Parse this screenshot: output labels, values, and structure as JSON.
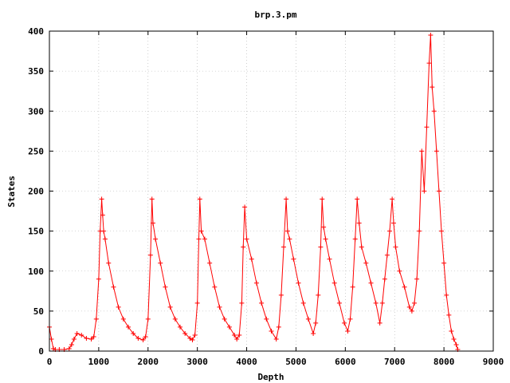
{
  "chart_data": {
    "type": "line",
    "title": "brp.3.pm",
    "xlabel": "Depth",
    "ylabel": "States",
    "xlim": [
      0,
      9000
    ],
    "ylim": [
      0,
      400
    ],
    "xticks": [
      0,
      1000,
      2000,
      3000,
      4000,
      5000,
      6000,
      7000,
      8000,
      9000
    ],
    "yticks": [
      0,
      50,
      100,
      150,
      200,
      250,
      300,
      350,
      400
    ],
    "grid": true,
    "legend": "none",
    "marker": "plus",
    "color": "#ff0000",
    "series": [
      {
        "x": [
          0,
          40,
          80,
          120,
          200,
          300,
          400,
          450,
          500,
          560,
          650,
          750,
          850,
          900,
          950,
          1000,
          1030,
          1060,
          1080,
          1100,
          1130,
          1200,
          1300,
          1400,
          1500,
          1600,
          1700,
          1800,
          1900,
          1950,
          2000,
          2050,
          2080,
          2100,
          2150,
          2250,
          2350,
          2450,
          2550,
          2650,
          2750,
          2850,
          2900,
          2950,
          3000,
          3030,
          3050,
          3080,
          3150,
          3250,
          3350,
          3450,
          3550,
          3650,
          3750,
          3800,
          3850,
          3900,
          3930,
          3960,
          4000,
          4100,
          4200,
          4300,
          4400,
          4500,
          4600,
          4650,
          4700,
          4750,
          4800,
          4830,
          4870,
          4950,
          5050,
          5150,
          5250,
          5350,
          5400,
          5450,
          5500,
          5530,
          5560,
          5600,
          5680,
          5780,
          5880,
          5980,
          6050,
          6100,
          6150,
          6200,
          6240,
          6280,
          6330,
          6420,
          6520,
          6620,
          6700,
          6750,
          6800,
          6850,
          6900,
          6950,
          6980,
          7020,
          7100,
          7200,
          7300,
          7350,
          7400,
          7450,
          7500,
          7550,
          7600,
          7650,
          7700,
          7730,
          7760,
          7800,
          7850,
          7900,
          7950,
          8000,
          8050,
          8100,
          8150,
          8200,
          8250,
          8280
        ],
        "y": [
          30,
          15,
          3,
          2,
          2,
          2,
          3,
          8,
          15,
          22,
          20,
          16,
          15,
          18,
          40,
          90,
          150,
          190,
          170,
          150,
          140,
          110,
          80,
          55,
          40,
          30,
          22,
          16,
          14,
          18,
          40,
          120,
          190,
          160,
          140,
          110,
          80,
          55,
          40,
          30,
          22,
          16,
          14,
          20,
          60,
          140,
          190,
          150,
          140,
          110,
          80,
          55,
          40,
          30,
          20,
          15,
          20,
          60,
          130,
          180,
          140,
          115,
          85,
          60,
          40,
          25,
          15,
          30,
          70,
          130,
          190,
          150,
          140,
          115,
          85,
          60,
          40,
          22,
          35,
          70,
          130,
          190,
          155,
          140,
          115,
          85,
          60,
          35,
          25,
          40,
          80,
          140,
          190,
          160,
          130,
          110,
          85,
          60,
          35,
          60,
          90,
          120,
          150,
          190,
          160,
          130,
          100,
          80,
          55,
          50,
          60,
          90,
          150,
          250,
          200,
          280,
          360,
          395,
          330,
          300,
          250,
          200,
          150,
          110,
          70,
          45,
          25,
          15,
          8,
          2
        ]
      }
    ]
  }
}
